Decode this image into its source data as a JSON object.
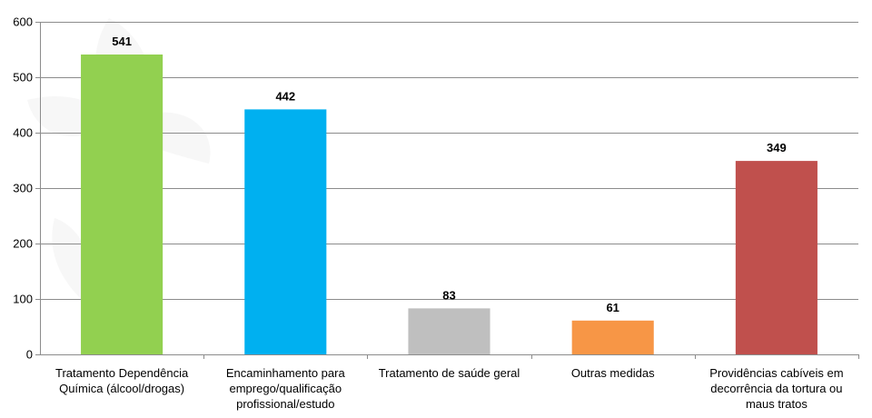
{
  "chart_data": {
    "type": "bar",
    "title": "",
    "xlabel": "",
    "ylabel": "",
    "ylim": [
      0,
      600
    ],
    "yticks": [
      0,
      100,
      200,
      300,
      400,
      500,
      600
    ],
    "grid": true,
    "legend": "none",
    "categories": [
      [
        "Tratamento Dependência",
        "Química (álcool/drogas)"
      ],
      [
        "Encaminhamento para",
        "emprego/qualificação",
        "profissional/estudo"
      ],
      [
        "Tratamento de saúde geral"
      ],
      [
        "Outras medidas"
      ],
      [
        "Providências cabíveis em",
        "decorrência da tortura ou",
        "maus tratos"
      ]
    ],
    "values": [
      541,
      442,
      83,
      61,
      349
    ],
    "colors": [
      "#92d050",
      "#00b0f0",
      "#bfbfbf",
      "#f79646",
      "#c0504d"
    ]
  }
}
